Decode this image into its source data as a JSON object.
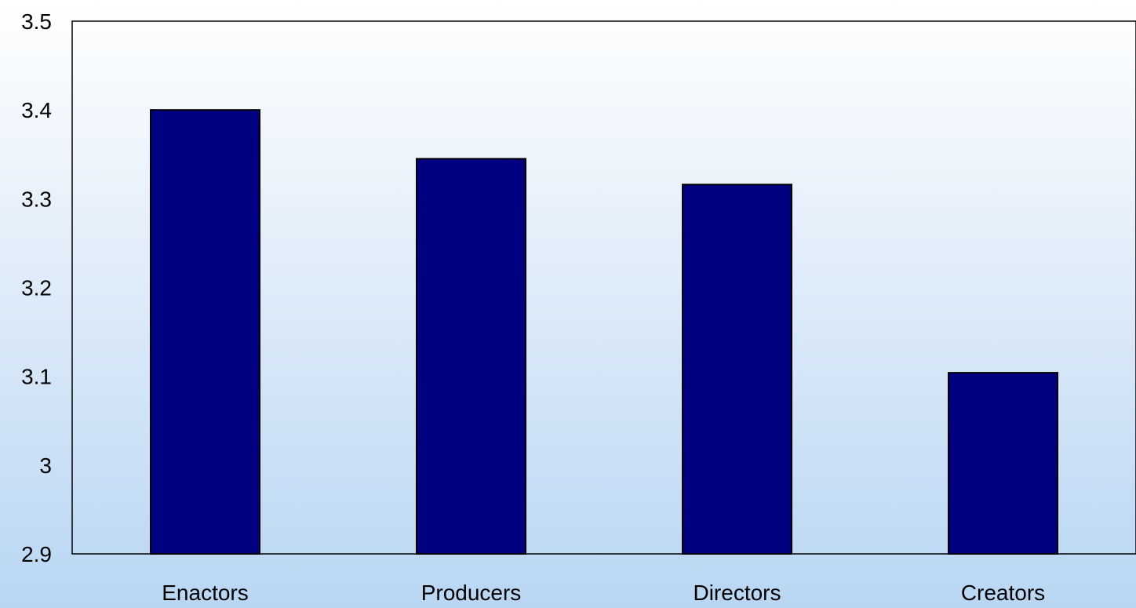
{
  "chart_data": {
    "type": "bar",
    "title": "",
    "xlabel": "",
    "ylabel": "",
    "categories": [
      "Enactors",
      "Producers",
      "Directors",
      "Creators"
    ],
    "values": [
      3.4,
      3.345,
      3.316,
      3.104
    ],
    "ylim": [
      2.9,
      3.5
    ],
    "yticks": [
      "2.9",
      "3",
      "3.1",
      "3.2",
      "3.3",
      "3.4",
      "3.5"
    ],
    "grid": false,
    "legend": "none",
    "bar_color": "#000080"
  }
}
